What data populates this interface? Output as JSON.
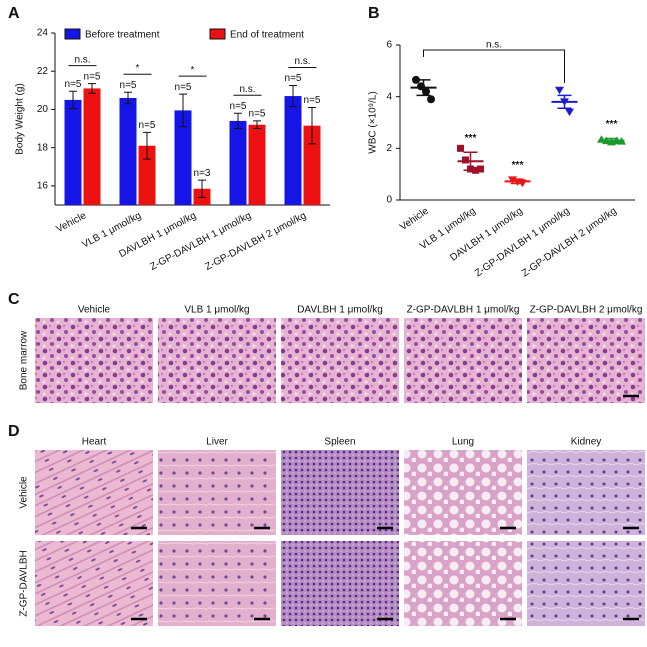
{
  "chart_data": [
    {
      "type": "bar",
      "panel_label": "A",
      "y_label": "Body Weight (g)",
      "categories": [
        "Vehicle",
        "VLB  1 μmol/kg",
        "DAVLBH  1 μmol/kg",
        "Z-GP-DAVLBH 1 μmol/kg",
        "Z-GP-DAVLBH 2 μmol/kg"
      ],
      "ylim": [
        15,
        24
      ],
      "yticks": [
        16,
        18,
        20,
        22,
        24
      ],
      "series": [
        {
          "name": "Before treatment",
          "color": "#1515e8",
          "values": [
            20.5,
            20.6,
            19.95,
            19.4,
            20.7
          ],
          "errors": [
            0.45,
            0.3,
            0.85,
            0.4,
            0.55
          ],
          "n_labels": [
            "n=5",
            "n=5",
            "n=5",
            "n=5",
            "n=5"
          ]
        },
        {
          "name": "End of treatment",
          "color": "#ee1111",
          "values": [
            21.1,
            18.1,
            15.85,
            19.2,
            19.15
          ],
          "errors": [
            0.25,
            0.7,
            0.45,
            0.2,
            0.95
          ],
          "n_labels": [
            "n=5",
            "n=5",
            "n=3",
            "n=5",
            "n=5"
          ]
        }
      ],
      "significance": [
        "n.s.",
        "*",
        "*",
        "n.s.",
        "n.s."
      ]
    },
    {
      "type": "scatter",
      "panel_label": "B",
      "y_label": "WBC (×10⁹/L)",
      "categories": [
        "Vehicle",
        "VLB  1 μmol/kg",
        "DAVLBH  1 μmol/kg",
        "Z-GP-DAVLBH 1 μmol/kg",
        "Z-GP-DAVLBH 2 μmol/kg"
      ],
      "ylim": [
        0,
        6
      ],
      "yticks": [
        0,
        2,
        4,
        6
      ],
      "groups": [
        {
          "color": "#111111",
          "marker": "circle",
          "values": [
            4.65,
            4.4,
            4.2,
            3.9
          ],
          "mean": 4.35,
          "error": 0.3,
          "significance": null
        },
        {
          "color": "#a0102a",
          "marker": "square",
          "values": [
            2.0,
            1.55,
            1.2,
            1.15,
            1.2
          ],
          "mean": 1.5,
          "error": 0.35,
          "significance": "***"
        },
        {
          "color": "#e81818",
          "marker": "triangle-down",
          "values": [
            0.78,
            0.7,
            0.65
          ],
          "mean": 0.72,
          "error": 0.08,
          "significance": "***"
        },
        {
          "color": "#1a1ad0",
          "marker": "triangle-down",
          "values": [
            4.25,
            3.8,
            3.4
          ],
          "mean": 3.8,
          "error": 0.25,
          "significance": null
        },
        {
          "color": "#1a9a2a",
          "marker": "triangle-up",
          "values": [
            2.35,
            2.3,
            2.25,
            2.3,
            2.28
          ],
          "mean": 2.3,
          "error": 0.08,
          "significance": "***"
        }
      ],
      "comparison_label": "n.s."
    }
  ],
  "histology": [
    {
      "panel_label": "C",
      "row_labels": [
        "Bone marrow"
      ],
      "columns": [
        "Vehicle",
        "VLB  1 μmol/kg",
        "DAVLBH  1 μmol/kg",
        "Z-GP-DAVLBH 1 μmol/kg",
        "Z-GP-DAVLBH 2 μmol/kg"
      ]
    },
    {
      "panel_label": "D",
      "row_labels": [
        "Vehicle",
        "Z-GP-DAVLBH"
      ],
      "columns": [
        "Heart",
        "Liver",
        "Spleen",
        "Lung",
        "Kidney"
      ]
    }
  ]
}
